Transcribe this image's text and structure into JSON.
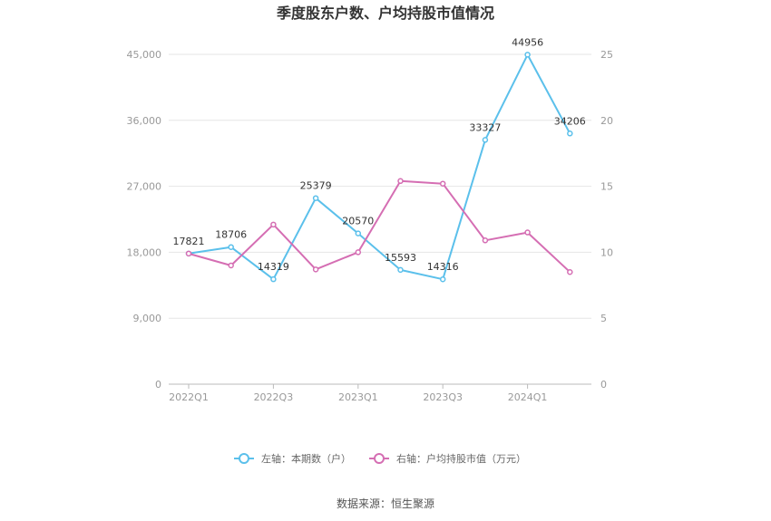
{
  "chart_data": {
    "type": "line",
    "title": "季度股东户数、户均持股市值情况",
    "categories": [
      "2022Q1",
      "2022Q2",
      "2022Q3",
      "2022Q4",
      "2023Q1",
      "2023Q2",
      "2023Q3",
      "2023Q4",
      "2024Q1",
      "2024Q2"
    ],
    "x_tick_labels": [
      "2022Q1",
      "2022Q3",
      "2023Q1",
      "2023Q3",
      "2024Q1"
    ],
    "y_left": {
      "min": 0,
      "max": 45000,
      "ticks": [
        0,
        9000,
        18000,
        27000,
        36000,
        45000
      ],
      "tick_labels": [
        "0",
        "9,000",
        "18,000",
        "27,000",
        "36,000",
        "45,000"
      ]
    },
    "y_right": {
      "min": 0,
      "max": 25,
      "ticks": [
        0,
        5,
        10,
        15,
        20,
        25
      ],
      "tick_labels": [
        "0",
        "5",
        "10",
        "15",
        "20",
        "25"
      ]
    },
    "series": [
      {
        "name": "左轴：本期数（户）",
        "axis": "left",
        "color": "#5bc0eb",
        "values": [
          17821,
          18706,
          14319,
          25379,
          20570,
          15593,
          14316,
          33327,
          44956,
          34206
        ],
        "labels": [
          "17821",
          "18706",
          "14319",
          "25379",
          "20570",
          "15593",
          "14316",
          "33327",
          "44956",
          "34206"
        ]
      },
      {
        "name": "右轴：户均持股市值（万元）",
        "axis": "right",
        "color": "#d56eb3",
        "values": [
          9.9,
          9.0,
          12.1,
          8.7,
          10.0,
          15.4,
          15.2,
          10.9,
          11.5,
          8.5
        ]
      }
    ],
    "grid": true,
    "legend_position": "bottom"
  },
  "source": "数据来源：恒生聚源"
}
